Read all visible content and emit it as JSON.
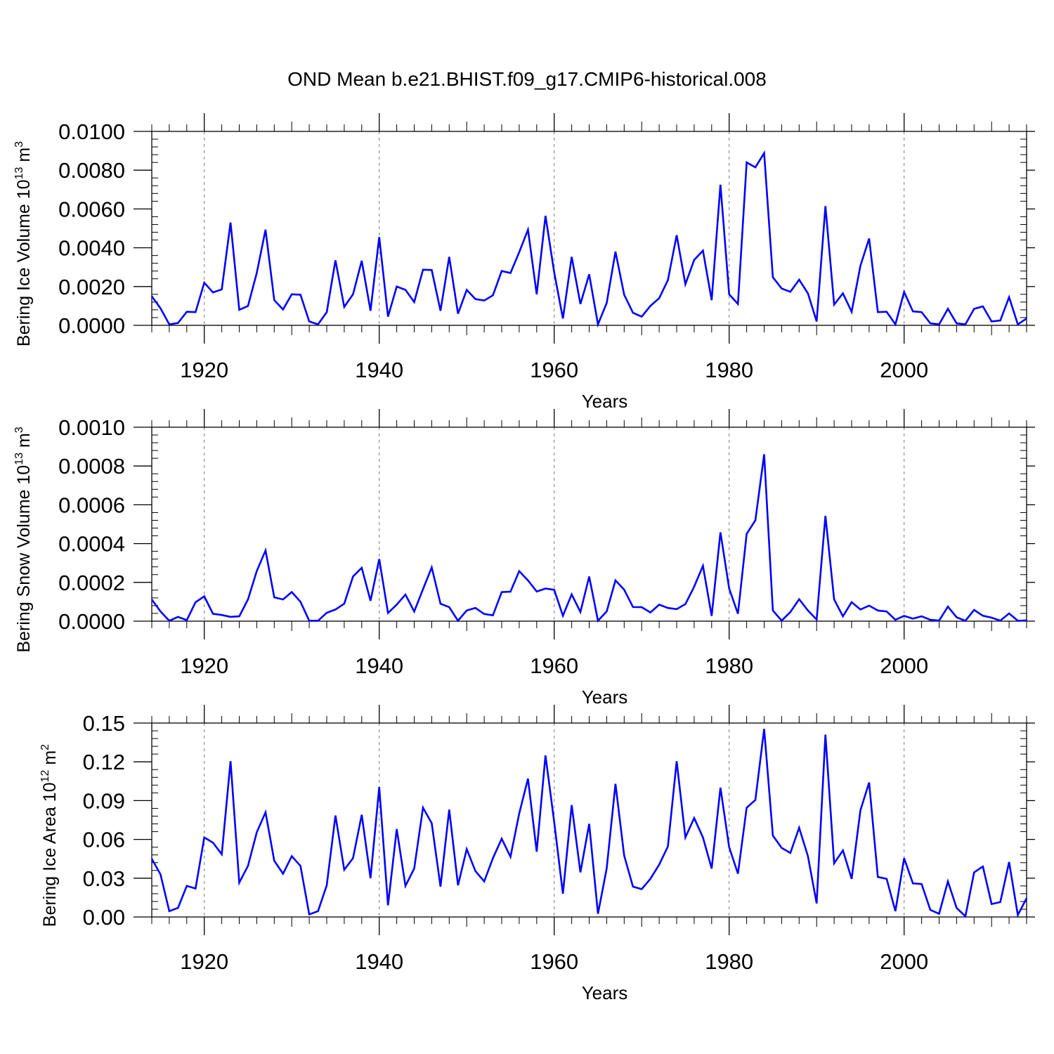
{
  "title": "OND Mean b.e21.BHIST.f09_g17.CMIP6-historical.008",
  "line_color": "#0000ff",
  "chart_data": [
    {
      "type": "line",
      "name": "ice-volume",
      "ylabel_main": "Bering Ice Volume 10",
      "ylabel_exp": "13",
      "ylabel_unit": " m",
      "ylabel_unit_exp": "3",
      "xlabel": "Years",
      "xlim": [
        1914,
        2014
      ],
      "ylim": [
        0,
        0.01
      ],
      "x_ticks": [
        1920,
        1940,
        1960,
        1980,
        2000
      ],
      "x_tick_labels": [
        "1920",
        "1940",
        "1960",
        "1980",
        "2000"
      ],
      "y_ticks": [
        0,
        0.002,
        0.004,
        0.006,
        0.008,
        0.01
      ],
      "y_tick_labels": [
        "0.0000",
        "0.0020",
        "0.0040",
        "0.0060",
        "0.0080",
        "0.0100"
      ],
      "grid": "vertical dashed at major x ticks",
      "x_start": 1914,
      "values": [
        0.0015,
        0.00088,
        5e-05,
        0.00012,
        0.0007,
        0.00068,
        0.0022,
        0.0017,
        0.00185,
        0.0053,
        0.0008,
        0.001,
        0.0027,
        0.00493,
        0.0013,
        0.00082,
        0.0016,
        0.00158,
        0.0002,
        5e-05,
        0.00068,
        0.00335,
        0.00095,
        0.0016,
        0.00333,
        0.00075,
        0.00455,
        0.00045,
        0.002,
        0.00183,
        0.0012,
        0.00287,
        0.00285,
        0.00075,
        0.00353,
        0.0006,
        0.00183,
        0.00135,
        0.00128,
        0.00155,
        0.0028,
        0.0027,
        0.00377,
        0.00493,
        0.0016,
        0.00565,
        0.00273,
        0.00035,
        0.00353,
        0.0011,
        0.00263,
        5e-05,
        0.00115,
        0.0038,
        0.00158,
        0.00065,
        0.00045,
        0.001,
        0.0014,
        0.00233,
        0.00465,
        0.00212,
        0.00337,
        0.00385,
        0.0013,
        0.00725,
        0.0016,
        0.0011,
        0.0084,
        0.00815,
        0.00888,
        0.00248,
        0.0019,
        0.00173,
        0.00235,
        0.00165,
        0.0002,
        0.00615,
        0.00107,
        0.00165,
        0.0007,
        0.00307,
        0.00448,
        0.00068,
        0.0007,
        5e-05,
        0.00172,
        0.00072,
        0.00068,
        0.0001,
        5e-05,
        0.00085,
        0.0001,
        5e-05,
        0.00085,
        0.00098,
        0.0002,
        0.00025,
        0.00145,
        5e-05,
        0.00035
      ]
    },
    {
      "type": "line",
      "name": "snow-volume",
      "ylabel_main": "Bering Snow Volume 10",
      "ylabel_exp": "13",
      "ylabel_unit": " m",
      "ylabel_unit_exp": "3",
      "xlabel": "Years",
      "xlim": [
        1914,
        2014
      ],
      "ylim": [
        0,
        0.001
      ],
      "x_ticks": [
        1920,
        1940,
        1960,
        1980,
        2000
      ],
      "x_tick_labels": [
        "1920",
        "1940",
        "1960",
        "1980",
        "2000"
      ],
      "y_ticks": [
        0,
        0.0002,
        0.0004,
        0.0006,
        0.0008,
        0.001
      ],
      "y_tick_labels": [
        "0.0000",
        "0.0002",
        "0.0004",
        "0.0006",
        "0.0008",
        "0.0010"
      ],
      "grid": "vertical dashed at major x ticks",
      "x_start": 1914,
      "values": [
        0.000112,
        5e-05,
        2e-06,
        2.2e-05,
        5e-06,
        9.8e-05,
        0.000128,
        3.8e-05,
        3.2e-05,
        2.2e-05,
        2.5e-05,
        0.000112,
        0.000258,
        0.000365,
        0.000123,
        0.000112,
        0.00015,
        0.0001,
        2e-06,
        2e-06,
        4.3e-05,
        6e-05,
        9e-05,
        0.00023,
        0.000275,
        0.000105,
        0.00032,
        4.2e-05,
        8.5e-05,
        0.000137,
        5e-05,
        0.000165,
        0.000277,
        9e-05,
        7.2e-05,
        2e-06,
        5.5e-05,
        6.8e-05,
        3.7e-05,
        3e-05,
        0.00015,
        0.000152,
        0.000258,
        0.00021,
        0.000153,
        0.000168,
        0.000162,
        2.8e-05,
        0.000138,
        4.7e-05,
        0.00023,
        2e-06,
        5e-05,
        0.00021,
        0.000162,
        7.3e-05,
        7.2e-05,
        4.5e-05,
        8.5e-05,
        6.8e-05,
        6.2e-05,
        8.8e-05,
        0.000178,
        0.000285,
        2.7e-05,
        0.000458,
        0.000168,
        3.8e-05,
        0.00045,
        0.00052,
        0.00086,
        5.5e-05,
        3e-06,
        4.7e-05,
        0.000113,
        5.5e-05,
        8e-06,
        0.000543,
        0.000112,
        2.5e-05,
        9.8e-05,
        6e-05,
        8e-05,
        5.5e-05,
        5e-05,
        7e-06,
        2.7e-05,
        1.3e-05,
        2.5e-05,
        7e-06,
        3e-06,
        7.5e-05,
        2e-05,
        2e-06,
        5.8e-05,
        2.8e-05,
        1.8e-05,
        3e-06,
        4e-05,
        2e-06,
        4e-06
      ]
    },
    {
      "type": "line",
      "name": "ice-area",
      "ylabel_main": "Bering Ice Area 10",
      "ylabel_exp": "12",
      "ylabel_unit": " m",
      "ylabel_unit_exp": "2",
      "xlabel": "Years",
      "xlim": [
        1914,
        2014
      ],
      "ylim": [
        0,
        0.15
      ],
      "x_ticks": [
        1920,
        1940,
        1960,
        1980,
        2000
      ],
      "x_tick_labels": [
        "1920",
        "1940",
        "1960",
        "1980",
        "2000"
      ],
      "y_ticks": [
        0,
        0.03,
        0.06,
        0.09,
        0.12,
        0.15
      ],
      "y_tick_labels": [
        "0.00",
        "0.03",
        "0.06",
        "0.09",
        "0.12",
        "0.15"
      ],
      "grid": "vertical dashed at major x ticks",
      "x_start": 1914,
      "values": [
        0.045,
        0.033,
        0.0045,
        0.007,
        0.024,
        0.022,
        0.0615,
        0.0575,
        0.0485,
        0.1205,
        0.0265,
        0.0395,
        0.0655,
        0.081,
        0.0435,
        0.0335,
        0.047,
        0.0395,
        0.002,
        0.0045,
        0.0245,
        0.0785,
        0.0365,
        0.0455,
        0.079,
        0.03,
        0.1005,
        0.009,
        0.068,
        0.024,
        0.0375,
        0.0845,
        0.0725,
        0.0235,
        0.083,
        0.0245,
        0.0525,
        0.0355,
        0.0275,
        0.0455,
        0.0605,
        0.0465,
        0.08,
        0.107,
        0.0505,
        0.125,
        0.0735,
        0.018,
        0.0865,
        0.0345,
        0.072,
        0.0025,
        0.0375,
        0.103,
        0.0475,
        0.0235,
        0.0215,
        0.0295,
        0.0405,
        0.0545,
        0.1205,
        0.0615,
        0.0765,
        0.0615,
        0.0375,
        0.1,
        0.054,
        0.0335,
        0.0845,
        0.0905,
        0.1455,
        0.063,
        0.0535,
        0.0495,
        0.069,
        0.047,
        0.0105,
        0.141,
        0.0415,
        0.0515,
        0.0295,
        0.0825,
        0.104,
        0.031,
        0.0295,
        0.0045,
        0.0455,
        0.026,
        0.0255,
        0.0055,
        0.0025,
        0.0275,
        0.007,
        0.0005,
        0.0345,
        0.039,
        0.01,
        0.0115,
        0.0425,
        0.0015,
        0.0145
      ]
    }
  ]
}
